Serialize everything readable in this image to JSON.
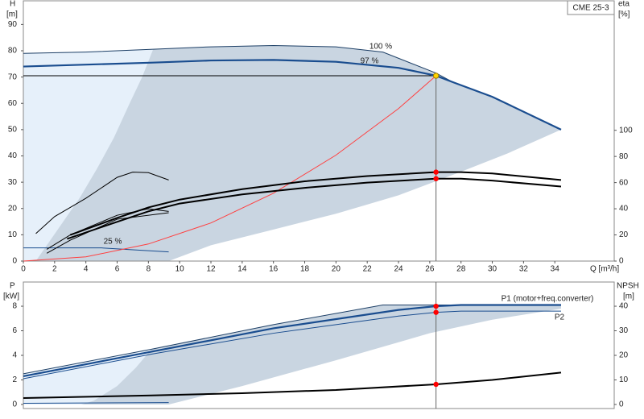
{
  "chart_data": [
    {
      "type": "line",
      "title": "CME 25-3",
      "y_label": "H",
      "y_unit": "[m]",
      "y2_label": "eta",
      "y2_unit": "[%]",
      "x_label": "Q [m³/h]",
      "xlim": [
        0,
        37.8
      ],
      "xticks": [
        0,
        2,
        4,
        6,
        8,
        10,
        12,
        14,
        16,
        18,
        20,
        22,
        24,
        26,
        28,
        30,
        32,
        34
      ],
      "ylim": [
        0,
        99
      ],
      "yticks": [
        0,
        10,
        20,
        30,
        40,
        50,
        60,
        70,
        80,
        90
      ],
      "y2lim": [
        0,
        199
      ],
      "y2ticks": [
        0,
        20,
        40,
        60,
        80,
        100
      ],
      "areas": [
        {
          "color": "#e6f0fa",
          "x": [
            0,
            0,
            8.3,
            9.3
          ],
          "values": [
            0,
            79,
            80.5,
            0
          ]
        },
        {
          "color": "#c9d5e1",
          "x": [
            8.3,
            12,
            16,
            20,
            23,
            26.4,
            27.5,
            30,
            34.4,
            31,
            28,
            24,
            20,
            16,
            12,
            9.3,
            0.8,
            2.2,
            3.6,
            4.7,
            5.8,
            6.8,
            7.6
          ],
          "values": [
            80.5,
            81.5,
            82,
            81.5,
            79.5,
            71.5,
            68,
            62.5,
            50,
            41,
            34,
            25,
            18,
            12,
            6,
            0,
            0,
            12,
            24,
            35,
            47,
            60,
            70
          ]
        }
      ],
      "series": [
        {
          "name": "100 %",
          "color": "#1d3f66",
          "x": [
            0,
            4,
            8,
            12,
            16,
            20,
            23,
            26.4,
            27.5,
            30,
            34.4
          ],
          "values": [
            79,
            79.5,
            80.5,
            81.5,
            82,
            81.5,
            79.5,
            71.5,
            68,
            62.5,
            50
          ]
        },
        {
          "name": "97 %",
          "color": "#1a4d8f",
          "x": [
            0,
            8.3,
            12,
            16,
            20,
            24,
            26.4,
            27.5,
            30,
            34.4
          ],
          "values": [
            74,
            75.5,
            76.3,
            76.5,
            75.8,
            73.5,
            70.5,
            68,
            62.5,
            50
          ]
        },
        {
          "name": "25 %",
          "color": "#1a4d8f",
          "x": [
            0,
            5,
            9.3
          ],
          "values": [
            5,
            5,
            3.5
          ]
        },
        {
          "color": "#ff4040",
          "x": [
            0,
            4,
            8,
            12,
            16,
            20,
            24,
            26.4
          ],
          "values": [
            0,
            1.6,
            6.5,
            14.5,
            25.8,
            40.3,
            58,
            70.5
          ]
        },
        {
          "color": "#000000",
          "axis": "y2",
          "x": [
            3,
            6,
            8,
            10,
            14,
            18,
            22,
            26.4,
            28,
            30,
            34.4
          ],
          "values": [
            20,
            33,
            41,
            47,
            55,
            61,
            65,
            68,
            68,
            67,
            62
          ]
        },
        {
          "color": "#000000",
          "axis": "y2",
          "x": [
            2.8,
            6,
            8,
            10,
            14,
            18,
            22,
            26.4,
            28,
            30,
            34.4
          ],
          "values": [
            17,
            30,
            38,
            44,
            51,
            56,
            60,
            63,
            63,
            61.5,
            57
          ]
        },
        {
          "color": "#000000",
          "axis": "y2",
          "x": [
            0.8,
            2,
            4,
            6,
            7,
            8,
            9.3
          ],
          "values": [
            21,
            34,
            48,
            64,
            68,
            67.6,
            62
          ]
        },
        {
          "color": "#000000",
          "axis": "y2",
          "x": [
            1.5,
            3,
            6,
            8,
            9.3
          ],
          "values": [
            9,
            20,
            35,
            40,
            38
          ]
        },
        {
          "color": "#000000",
          "axis": "y2",
          "x": [
            1.5,
            3,
            6,
            9.3
          ],
          "values": [
            6,
            16,
            32,
            37
          ]
        }
      ],
      "points": [
        {
          "x": 26.4,
          "y": 70.5,
          "color": "#ffd400",
          "guides": true
        },
        {
          "x": 26.4,
          "y": 68,
          "color": "#ff0000",
          "axis": "y2"
        },
        {
          "x": 26.4,
          "y": 63,
          "color": "#ff0000",
          "axis": "y2"
        }
      ]
    },
    {
      "type": "line",
      "y_label": "P",
      "y_unit": "[kW]",
      "y2_label": "NPSH",
      "y2_unit": "[m]",
      "xlim": [
        0,
        37.8
      ],
      "guide_x": 26.4,
      "ylim": [
        -0.33,
        9.97
      ],
      "yticks": [
        0,
        2,
        4,
        6,
        8
      ],
      "y2lim": [
        -1.65,
        49.85
      ],
      "y2ticks": [
        0,
        10,
        20,
        30,
        40
      ],
      "areas": [
        {
          "color": "#e6f0fa",
          "x": [
            0,
            0,
            8.2,
            9.3
          ],
          "values": [
            0,
            2.5,
            4.5,
            0
          ]
        },
        {
          "color": "#c9d5e1",
          "x": [
            8.2,
            16,
            23,
            34.4,
            34.4,
            30,
            26,
            20,
            14,
            9.3,
            3.7,
            4.5,
            6,
            7.2
          ],
          "values": [
            4.5,
            6.5,
            8.1,
            8.1,
            7.8,
            6.9,
            5.8,
            3.6,
            1.5,
            0,
            0,
            0.3,
            1.5,
            3
          ]
        }
      ],
      "series": [
        {
          "color": "#1d3f66",
          "x": [
            0,
            8.2,
            16,
            23,
            34.4
          ],
          "values": [
            2.5,
            4.5,
            6.5,
            8.1,
            8.1
          ]
        },
        {
          "name": "P1 (motor+freq.converter)",
          "color": "#1a4d8f",
          "x": [
            0,
            8.2,
            16,
            24,
            26.4,
            28,
            34.4
          ],
          "values": [
            2.3,
            4.3,
            6.2,
            7.7,
            8,
            8.1,
            8.1
          ]
        },
        {
          "name": "P2",
          "color": "#1a4d8f",
          "x": [
            0,
            8.2,
            16,
            24,
            26.4,
            28,
            34.4
          ],
          "values": [
            2.1,
            4.1,
            5.8,
            7.2,
            7.5,
            7.6,
            7.6
          ]
        },
        {
          "color": "#1a4d8f",
          "x": [
            0,
            9.3
          ],
          "values": [
            0.1,
            0.15
          ]
        },
        {
          "color": "#000000",
          "axis": "y2",
          "x": [
            0,
            8.2,
            14,
            20,
            26.4,
            30,
            34.4
          ],
          "values": [
            2.6,
            3.7,
            4.6,
            5.9,
            8.2,
            10,
            13
          ]
        }
      ],
      "points": [
        {
          "x": 26.4,
          "y": 8,
          "color": "#ff0000"
        },
        {
          "x": 26.4,
          "y": 7.5,
          "color": "#ff0000"
        },
        {
          "x": 26.4,
          "y": 8.2,
          "color": "#ff0000",
          "axis": "y2"
        }
      ]
    }
  ]
}
